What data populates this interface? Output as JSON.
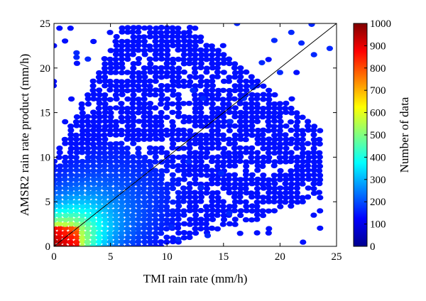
{
  "chart_data": {
    "type": "heatmap",
    "xlabel": "TMI rain rate (mm/h)",
    "ylabel": "AMSR2 rain rate product (mm/h)",
    "xlim": [
      0,
      25
    ],
    "ylim": [
      0,
      25
    ],
    "x_ticks": [
      "0",
      "5",
      "10",
      "15",
      "20",
      "25"
    ],
    "y_ticks": [
      "0",
      "5",
      "10",
      "15",
      "20",
      "25"
    ],
    "colorbar": {
      "label": "Number of data",
      "range": [
        0,
        1000
      ],
      "ticks": [
        "0",
        "100",
        "200",
        "300",
        "400",
        "500",
        "600",
        "700",
        "800",
        "900",
        "1000"
      ],
      "colormap": "jet"
    },
    "reference_line": {
      "from": [
        0,
        0
      ],
      "to": [
        25,
        25
      ],
      "color": "#000000"
    },
    "grid": false,
    "density_bins": [
      {
        "x": 0.0,
        "y": 0.0,
        "count": 1000
      },
      {
        "x": 0.5,
        "y": 0.5,
        "count": 950
      },
      {
        "x": 1.0,
        "y": 1.0,
        "count": 900
      },
      {
        "x": 1.0,
        "y": 0.5,
        "count": 880
      },
      {
        "x": 0.5,
        "y": 1.5,
        "count": 850
      },
      {
        "x": 1.5,
        "y": 1.5,
        "count": 800
      },
      {
        "x": 2.0,
        "y": 2.0,
        "count": 600
      },
      {
        "x": 3.0,
        "y": 3.0,
        "count": 450
      },
      {
        "x": 4.0,
        "y": 4.0,
        "count": 300
      },
      {
        "x": 5.0,
        "y": 5.0,
        "count": 200
      },
      {
        "x": 7.0,
        "y": 7.0,
        "count": 110
      },
      {
        "x": 9.0,
        "y": 9.0,
        "count": 60
      },
      {
        "x": 12.0,
        "y": 12.0,
        "count": 20
      },
      {
        "x": 15.0,
        "y": 15.0,
        "count": 5
      },
      {
        "x": 20.0,
        "y": 20.0,
        "count": 1
      }
    ]
  }
}
